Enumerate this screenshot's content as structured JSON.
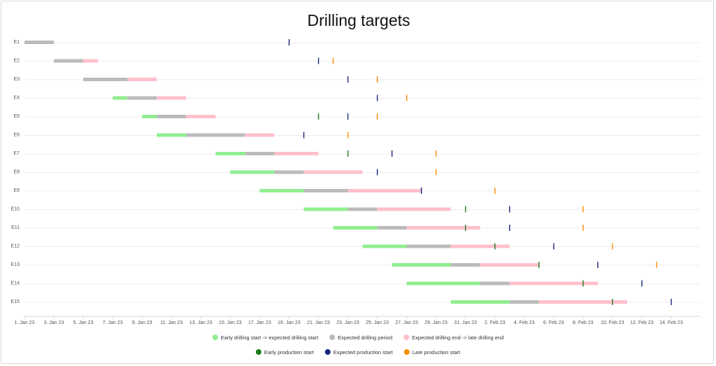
{
  "chart_data": {
    "type": "gantt",
    "title": "Drilling targets",
    "xlabel": "",
    "ylabel": "",
    "grid": true,
    "legend_position": "bottom",
    "x_ticks": [
      "1. Jan 23",
      "3. Jan 23",
      "5. Jan 23",
      "7. Jan 23",
      "9. Jan 23",
      "11. Jan 23",
      "13. Jan 23",
      "15. Jan 23",
      "17. Jan 23",
      "19. Jan 23",
      "21. Jan 23",
      "23. Jan 23",
      "25. Jan 23",
      "27. Jan 23",
      "29. Jan 23",
      "31. Jan 23",
      "2. Feb 23",
      "4. Feb 23",
      "6. Feb 23",
      "8. Feb 23",
      "10. Feb 23",
      "12. Feb 23",
      "14. Feb 23"
    ],
    "x_range": [
      "2023-01-01",
      "2023-02-16"
    ],
    "categories": [
      "E1",
      "E2",
      "E3",
      "E4",
      "E5",
      "E6",
      "E7",
      "E8",
      "E9",
      "E10",
      "E11",
      "E12",
      "E13",
      "E14",
      "E15"
    ],
    "series": [
      {
        "name": "Early drilling start -> expected drilling start",
        "color": "#90ee90",
        "kind": "range",
        "values": [
          null,
          null,
          null,
          [
            "2023-01-07",
            "2023-01-08"
          ],
          [
            "2023-01-09",
            "2023-01-10"
          ],
          [
            "2023-01-10",
            "2023-01-12"
          ],
          [
            "2023-01-14",
            "2023-01-16"
          ],
          [
            "2023-01-15",
            "2023-01-18"
          ],
          [
            "2023-01-17",
            "2023-01-20"
          ],
          [
            "2023-01-20",
            "2023-01-23"
          ],
          [
            "2023-01-22",
            "2023-01-25"
          ],
          [
            "2023-01-24",
            "2023-01-27"
          ],
          [
            "2023-01-26",
            "2023-01-30"
          ],
          [
            "2023-01-27",
            "2023-02-01"
          ],
          [
            "2023-01-30",
            "2023-02-03"
          ]
        ]
      },
      {
        "name": "Expected drilling period",
        "color": "#bbbbbb",
        "kind": "range",
        "values": [
          [
            "2023-01-01",
            "2023-01-03"
          ],
          [
            "2023-01-03",
            "2023-01-05"
          ],
          [
            "2023-01-05",
            "2023-01-08"
          ],
          [
            "2023-01-08",
            "2023-01-10"
          ],
          [
            "2023-01-10",
            "2023-01-12"
          ],
          [
            "2023-01-12",
            "2023-01-16"
          ],
          [
            "2023-01-16",
            "2023-01-18"
          ],
          [
            "2023-01-18",
            "2023-01-20"
          ],
          [
            "2023-01-20",
            "2023-01-23"
          ],
          [
            "2023-01-23",
            "2023-01-25"
          ],
          [
            "2023-01-25",
            "2023-01-27"
          ],
          [
            "2023-01-27",
            "2023-01-30"
          ],
          [
            "2023-01-30",
            "2023-02-01"
          ],
          [
            "2023-02-01",
            "2023-02-03"
          ],
          [
            "2023-02-03",
            "2023-02-05"
          ]
        ]
      },
      {
        "name": "Expected drilling end -> late drilling end",
        "color": "#ffc0cb",
        "kind": "range",
        "values": [
          null,
          [
            "2023-01-05",
            "2023-01-06"
          ],
          [
            "2023-01-08",
            "2023-01-10"
          ],
          [
            "2023-01-10",
            "2023-01-12"
          ],
          [
            "2023-01-12",
            "2023-01-14"
          ],
          [
            "2023-01-16",
            "2023-01-18"
          ],
          [
            "2023-01-18",
            "2023-01-21"
          ],
          [
            "2023-01-20",
            "2023-01-24"
          ],
          [
            "2023-01-23",
            "2023-01-28"
          ],
          [
            "2023-01-25",
            "2023-01-30"
          ],
          [
            "2023-01-27",
            "2023-02-01"
          ],
          [
            "2023-01-30",
            "2023-02-03"
          ],
          [
            "2023-02-01",
            "2023-02-05"
          ],
          [
            "2023-02-03",
            "2023-02-09"
          ],
          [
            "2023-02-05",
            "2023-02-11"
          ]
        ]
      },
      {
        "name": "Early production start",
        "color": "#1e7b1e",
        "kind": "marker",
        "values": [
          null,
          null,
          null,
          null,
          "2023-01-21",
          null,
          "2023-01-23",
          null,
          null,
          "2023-01-31",
          "2023-01-31",
          "2023-02-02",
          "2023-02-05",
          "2023-02-08",
          "2023-02-10"
        ]
      },
      {
        "name": "Expected production start",
        "color": "#1a237e",
        "kind": "marker",
        "values": [
          "2023-01-19",
          "2023-01-21",
          "2023-01-23",
          "2023-01-25",
          "2023-01-23",
          "2023-01-20",
          "2023-01-26",
          "2023-01-25",
          "2023-01-28",
          "2023-02-03",
          "2023-02-03",
          "2023-02-06",
          "2023-02-09",
          "2023-02-12",
          "2023-02-14"
        ]
      },
      {
        "name": "Late production start",
        "color": "#ff8c00",
        "kind": "marker",
        "values": [
          null,
          "2023-01-22",
          "2023-01-25",
          "2023-01-27",
          "2023-01-25",
          "2023-01-23",
          "2023-01-29",
          "2023-01-29",
          "2023-02-02",
          "2023-02-08",
          "2023-02-08",
          "2023-02-10",
          "2023-02-13",
          null,
          null
        ]
      }
    ]
  }
}
